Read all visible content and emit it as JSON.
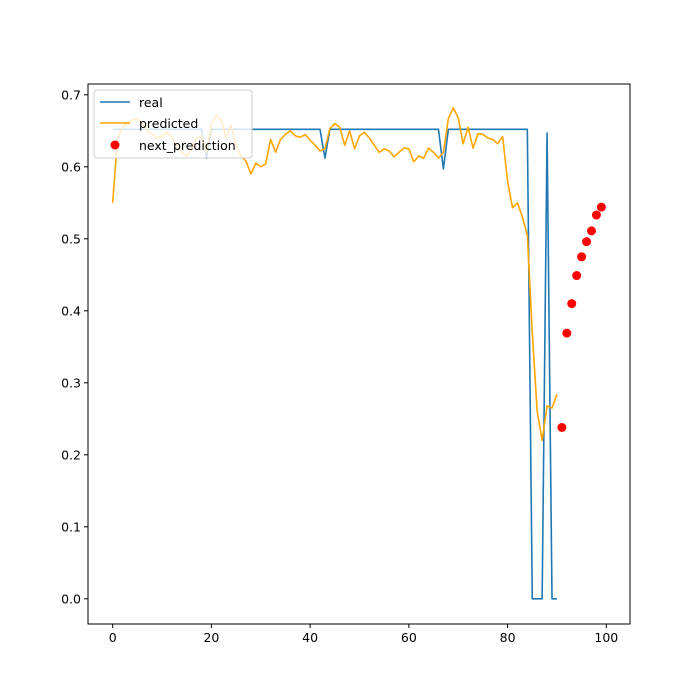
{
  "chart_data": {
    "type": "line",
    "title": "",
    "xlabel": "",
    "ylabel": "",
    "xlim": [
      -5,
      104.8
    ],
    "ylim": [
      -0.035,
      0.715
    ],
    "xticks": [
      0,
      20,
      40,
      60,
      80,
      100
    ],
    "yticks": [
      0.0,
      0.1,
      0.2,
      0.3,
      0.4,
      0.5,
      0.6,
      0.7
    ],
    "xtick_labels": [
      "0",
      "20",
      "40",
      "60",
      "80",
      "100"
    ],
    "ytick_labels": [
      "0.0",
      "0.1",
      "0.2",
      "0.3",
      "0.4",
      "0.5",
      "0.6",
      "0.7"
    ],
    "grid": false,
    "legend_position": "top-left",
    "series": [
      {
        "name": "real",
        "kind": "line",
        "color": "#1f77b4",
        "x": [
          0,
          1,
          2,
          3,
          4,
          5,
          6,
          7,
          8,
          9,
          10,
          11,
          12,
          13,
          14,
          15,
          16,
          17,
          18,
          19,
          20,
          21,
          22,
          23,
          24,
          25,
          26,
          27,
          28,
          29,
          30,
          31,
          32,
          33,
          34,
          35,
          36,
          37,
          38,
          39,
          40,
          41,
          42,
          43,
          44,
          45,
          46,
          47,
          48,
          49,
          50,
          51,
          52,
          53,
          54,
          55,
          56,
          57,
          58,
          59,
          60,
          61,
          62,
          63,
          64,
          65,
          66,
          67,
          68,
          69,
          70,
          71,
          72,
          73,
          74,
          75,
          76,
          77,
          78,
          79,
          80,
          81,
          82,
          83,
          84,
          85,
          86,
          87,
          88,
          89,
          90
        ],
        "y": [
          0.652,
          0.652,
          0.652,
          0.652,
          0.652,
          0.652,
          0.652,
          0.652,
          0.652,
          0.652,
          0.652,
          0.652,
          0.652,
          0.652,
          0.652,
          0.652,
          0.652,
          0.652,
          0.652,
          0.612,
          0.652,
          0.652,
          0.652,
          0.652,
          0.652,
          0.652,
          0.652,
          0.652,
          0.652,
          0.652,
          0.652,
          0.652,
          0.652,
          0.652,
          0.652,
          0.652,
          0.652,
          0.652,
          0.652,
          0.652,
          0.652,
          0.652,
          0.652,
          0.612,
          0.652,
          0.652,
          0.652,
          0.652,
          0.652,
          0.652,
          0.652,
          0.652,
          0.652,
          0.652,
          0.652,
          0.652,
          0.652,
          0.652,
          0.652,
          0.652,
          0.652,
          0.652,
          0.652,
          0.652,
          0.652,
          0.652,
          0.652,
          0.597,
          0.652,
          0.652,
          0.652,
          0.652,
          0.652,
          0.652,
          0.652,
          0.652,
          0.652,
          0.652,
          0.652,
          0.652,
          0.652,
          0.652,
          0.652,
          0.652,
          0.652,
          0.0,
          0.0,
          0.0,
          0.647,
          0.0,
          0.0
        ]
      },
      {
        "name": "predicted",
        "kind": "line",
        "color": "#ffa500",
        "x": [
          0,
          1,
          2,
          3,
          4,
          5,
          6,
          7,
          8,
          9,
          10,
          11,
          12,
          13,
          14,
          15,
          16,
          17,
          18,
          19,
          20,
          21,
          22,
          23,
          24,
          25,
          26,
          27,
          28,
          29,
          30,
          31,
          32,
          33,
          34,
          35,
          36,
          37,
          38,
          39,
          40,
          41,
          42,
          43,
          44,
          45,
          46,
          47,
          48,
          49,
          50,
          51,
          52,
          53,
          54,
          55,
          56,
          57,
          58,
          59,
          60,
          61,
          62,
          63,
          64,
          65,
          66,
          67,
          68,
          69,
          70,
          71,
          72,
          73,
          74,
          75,
          76,
          77,
          78,
          79,
          80,
          81,
          82,
          83,
          84,
          85,
          86,
          87,
          88,
          89,
          90
        ],
        "y": [
          0.55,
          0.64,
          0.655,
          0.66,
          0.665,
          0.667,
          0.66,
          0.65,
          0.645,
          0.64,
          0.643,
          0.648,
          0.642,
          0.63,
          0.62,
          0.615,
          0.625,
          0.64,
          0.643,
          0.62,
          0.66,
          0.672,
          0.665,
          0.64,
          0.658,
          0.63,
          0.615,
          0.608,
          0.59,
          0.605,
          0.6,
          0.604,
          0.638,
          0.62,
          0.638,
          0.645,
          0.65,
          0.643,
          0.641,
          0.645,
          0.637,
          0.63,
          0.622,
          0.625,
          0.653,
          0.66,
          0.655,
          0.63,
          0.65,
          0.625,
          0.643,
          0.648,
          0.64,
          0.63,
          0.62,
          0.625,
          0.622,
          0.614,
          0.62,
          0.626,
          0.625,
          0.607,
          0.615,
          0.612,
          0.626,
          0.62,
          0.612,
          0.62,
          0.667,
          0.682,
          0.668,
          0.632,
          0.655,
          0.626,
          0.646,
          0.645,
          0.64,
          0.638,
          0.632,
          0.642,
          0.58,
          0.543,
          0.55,
          0.53,
          0.505,
          0.37,
          0.26,
          0.22,
          0.268,
          0.265,
          0.284
        ]
      },
      {
        "name": "next_prediction",
        "kind": "scatter",
        "color": "#ff0000",
        "x": [
          91,
          92,
          93,
          94,
          95,
          96,
          97,
          98,
          99
        ],
        "y": [
          0.238,
          0.369,
          0.41,
          0.449,
          0.475,
          0.496,
          0.511,
          0.533,
          0.544
        ]
      }
    ]
  }
}
